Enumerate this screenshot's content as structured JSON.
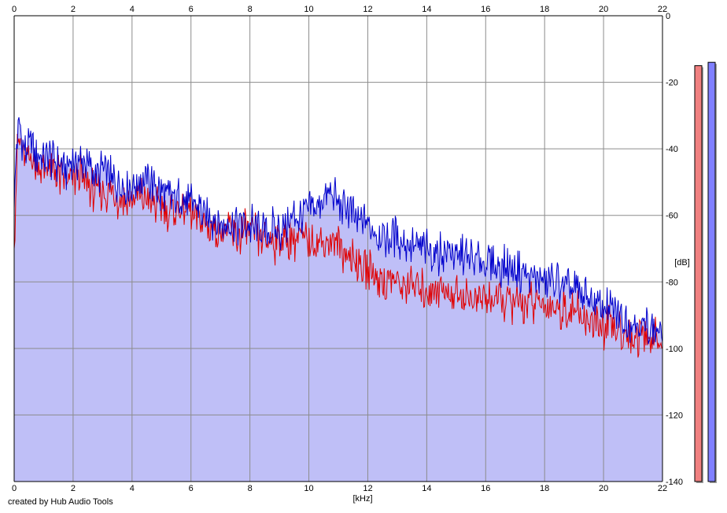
{
  "chart_data": {
    "type": "area",
    "xlabel": "[kHz]",
    "ylabel": "[dB]",
    "xlim": [
      0,
      22
    ],
    "ylim": [
      -140,
      0
    ],
    "x_ticks": [
      0,
      2,
      4,
      6,
      8,
      10,
      12,
      14,
      16,
      18,
      20,
      22
    ],
    "y_ticks": [
      0,
      -20,
      -40,
      -60,
      -80,
      -100,
      -120,
      -140
    ],
    "grid": true,
    "series": [
      {
        "color": "#0000cc",
        "x": [
          0,
          0.1,
          0.2,
          0.3,
          0.4,
          0.6,
          0.8,
          1.0,
          1.2,
          1.5,
          1.8,
          2.0,
          2.2,
          2.5,
          2.8,
          3.0,
          3.3,
          3.6,
          3.9,
          4.2,
          4.5,
          4.8,
          5.0,
          5.3,
          5.6,
          5.9,
          6.2,
          6.5,
          6.8,
          7.0,
          7.3,
          7.6,
          7.9,
          8.2,
          8.5,
          8.8,
          9.0,
          9.3,
          9.6,
          9.9,
          10.2,
          10.5,
          10.8,
          11.1,
          11.4,
          11.7,
          12.0,
          12.3,
          12.6,
          12.9,
          13.2,
          13.5,
          13.8,
          14.1,
          14.4,
          14.7,
          15.0,
          15.3,
          15.6,
          15.9,
          16.2,
          16.5,
          16.8,
          17.1,
          17.4,
          17.7,
          18.0,
          18.3,
          18.6,
          18.9,
          19.2,
          19.5,
          19.8,
          20.1,
          20.4,
          20.7,
          21.0,
          21.3,
          21.6,
          21.9,
          22.0
        ],
        "y": [
          -58,
          -36,
          -33,
          -38,
          -41,
          -39,
          -42,
          -44,
          -43,
          -44,
          -46,
          -44,
          -43,
          -45,
          -48,
          -46,
          -49,
          -50,
          -51,
          -50,
          -49,
          -52,
          -54,
          -55,
          -55,
          -56,
          -57,
          -60,
          -61,
          -63,
          -62,
          -63,
          -62,
          -64,
          -64,
          -64,
          -65,
          -62,
          -60,
          -60,
          -57,
          -56,
          -54,
          -57,
          -59,
          -62,
          -63,
          -65,
          -66,
          -66,
          -68,
          -69,
          -70,
          -70,
          -71,
          -70,
          -72,
          -72,
          -74,
          -73,
          -75,
          -75,
          -76,
          -77,
          -78,
          -79,
          -80,
          -80,
          -81,
          -82,
          -84,
          -85,
          -87,
          -88,
          -89,
          -91,
          -92,
          -93,
          -93,
          -95,
          -98
        ]
      },
      {
        "color": "#e00000",
        "x": [
          0,
          0.1,
          0.2,
          0.3,
          0.4,
          0.6,
          0.8,
          1.0,
          1.2,
          1.5,
          1.8,
          2.0,
          2.2,
          2.5,
          2.8,
          3.0,
          3.3,
          3.6,
          3.9,
          4.2,
          4.5,
          4.8,
          5.0,
          5.3,
          5.6,
          5.9,
          6.2,
          6.5,
          6.8,
          7.0,
          7.3,
          7.6,
          7.9,
          8.2,
          8.5,
          8.8,
          9.0,
          9.3,
          9.6,
          9.9,
          10.2,
          10.5,
          10.8,
          11.1,
          11.4,
          11.7,
          12.0,
          12.3,
          12.6,
          12.9,
          13.2,
          13.5,
          13.8,
          14.1,
          14.4,
          14.7,
          15.0,
          15.3,
          15.6,
          15.9,
          16.2,
          16.5,
          16.8,
          17.1,
          17.4,
          17.7,
          18.0,
          18.3,
          18.6,
          18.9,
          19.2,
          19.5,
          19.8,
          20.1,
          20.4,
          20.7,
          21.0,
          21.3,
          21.6,
          21.9,
          22.0
        ],
        "y": [
          -70,
          -40,
          -38,
          -42,
          -44,
          -42,
          -45,
          -47,
          -46,
          -48,
          -50,
          -49,
          -48,
          -51,
          -54,
          -52,
          -54,
          -55,
          -56,
          -55,
          -55,
          -57,
          -58,
          -58,
          -58,
          -59,
          -60,
          -63,
          -64,
          -65,
          -65,
          -66,
          -65,
          -66,
          -67,
          -68,
          -68,
          -67,
          -67,
          -68,
          -68,
          -68,
          -68,
          -70,
          -72,
          -74,
          -76,
          -78,
          -80,
          -80,
          -81,
          -81,
          -82,
          -82,
          -82,
          -83,
          -84,
          -84,
          -85,
          -85,
          -85,
          -86,
          -86,
          -86,
          -86,
          -87,
          -87,
          -88,
          -88,
          -89,
          -90,
          -92,
          -93,
          -94,
          -94,
          -95,
          -96,
          -96,
          -97,
          -98,
          -100
        ]
      }
    ],
    "level_meters": [
      {
        "color": "#f08080",
        "level_db": -15
      },
      {
        "color": "#8080ff",
        "level_db": -14
      }
    ]
  },
  "footer": {
    "credit": "created by Hub Audio Tools"
  },
  "colors": {
    "fill": "#bfbff7",
    "grid": "#8c8c8c",
    "axis": "#000000",
    "background": "#ffffff"
  }
}
